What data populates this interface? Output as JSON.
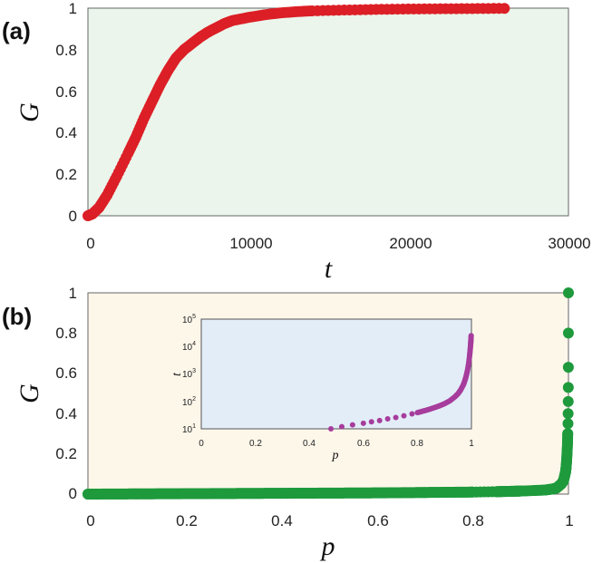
{
  "chart_data": [
    {
      "type": "scatter",
      "panel_label": "(a)",
      "xlabel": "t",
      "ylabel": "G",
      "xlim": [
        0,
        30000
      ],
      "ylim": [
        0,
        1
      ],
      "xticks": [
        "0",
        "10000",
        "20000",
        "30000"
      ],
      "yticks": [
        "0",
        "0.2",
        "0.4",
        "0.6",
        "0.8",
        "1"
      ],
      "background": "#ebf5eb",
      "series": [
        {
          "color": "#dc1f26",
          "x": [
            0,
            300,
            700,
            1200,
            1800,
            2500,
            3000,
            3500,
            4000,
            4500,
            5000,
            5500,
            6000,
            6500,
            7000,
            7500,
            8000,
            8500,
            9000,
            10000,
            11000,
            12000,
            13000,
            14000,
            16000,
            18000,
            20000,
            22000,
            24000,
            26000
          ],
          "y": [
            0,
            0.01,
            0.04,
            0.1,
            0.19,
            0.3,
            0.38,
            0.47,
            0.55,
            0.63,
            0.7,
            0.76,
            0.8,
            0.83,
            0.86,
            0.885,
            0.905,
            0.925,
            0.94,
            0.955,
            0.968,
            0.977,
            0.983,
            0.987,
            0.991,
            0.994,
            0.996,
            0.997,
            0.998,
            0.999
          ]
        }
      ]
    },
    {
      "type": "scatter",
      "panel_label": "(b)",
      "xlabel": "p",
      "ylabel": "G",
      "xlim": [
        0,
        1
      ],
      "ylim": [
        0,
        1
      ],
      "xticks": [
        "0",
        "0.2",
        "0.4",
        "0.6",
        "0.8",
        "1"
      ],
      "yticks": [
        "0",
        "0.2",
        "0.4",
        "0.6",
        "0.8",
        "1"
      ],
      "background": "#fdf7ea",
      "series": [
        {
          "color": "#1e9a3c",
          "x": [
            0,
            0.1,
            0.2,
            0.3,
            0.4,
            0.5,
            0.6,
            0.7,
            0.8,
            0.85,
            0.9,
            0.93,
            0.95,
            0.96,
            0.97,
            0.975,
            0.98,
            0.985,
            0.988,
            0.99,
            0.992,
            0.994,
            0.995,
            0.996,
            0.997,
            0.998,
            0.9985,
            0.999,
            0.9993,
            0.9995,
            0.9997,
            0.9998,
            0.9999,
            1
          ],
          "y": [
            0,
            0.001,
            0.002,
            0.003,
            0.004,
            0.005,
            0.006,
            0.008,
            0.01,
            0.012,
            0.015,
            0.018,
            0.02,
            0.023,
            0.027,
            0.03,
            0.04,
            0.05,
            0.06,
            0.07,
            0.09,
            0.11,
            0.13,
            0.16,
            0.2,
            0.25,
            0.3,
            0.35,
            0.4,
            0.46,
            0.53,
            0.63,
            0.8,
            1
          ]
        }
      ],
      "inset": {
        "type": "scatter",
        "xlabel": "p",
        "ylabel": "t",
        "xlim": [
          0,
          1
        ],
        "ylim": [
          10,
          100000
        ],
        "yscale": "log",
        "xticks": [
          "0",
          "0.2",
          "0.4",
          "0.6",
          "0.8",
          "1"
        ],
        "ytick_base": "10",
        "ytick_exponents": [
          "1",
          "2",
          "3",
          "4",
          "5"
        ],
        "background": "#e3edf8",
        "series": [
          {
            "color": "#a63c9c",
            "x": [
              0.48,
              0.52,
              0.56,
              0.6,
              0.63,
              0.66,
              0.69,
              0.72,
              0.75,
              0.78,
              0.8,
              0.82,
              0.84,
              0.86,
              0.88,
              0.9,
              0.92,
              0.94,
              0.95,
              0.96,
              0.97,
              0.975,
              0.98,
              0.985,
              0.99,
              0.993,
              0.995,
              0.997,
              0.998,
              0.999
            ],
            "y": [
              10,
              12,
              14,
              16,
              18,
              20,
              23,
              26,
              30,
              35,
              39,
              44,
              50,
              58,
              68,
              82,
              105,
              150,
              190,
              260,
              400,
              550,
              800,
              1300,
              2500,
              4500,
              7000,
              12000,
              17000,
              25000
            ]
          }
        ]
      }
    }
  ]
}
